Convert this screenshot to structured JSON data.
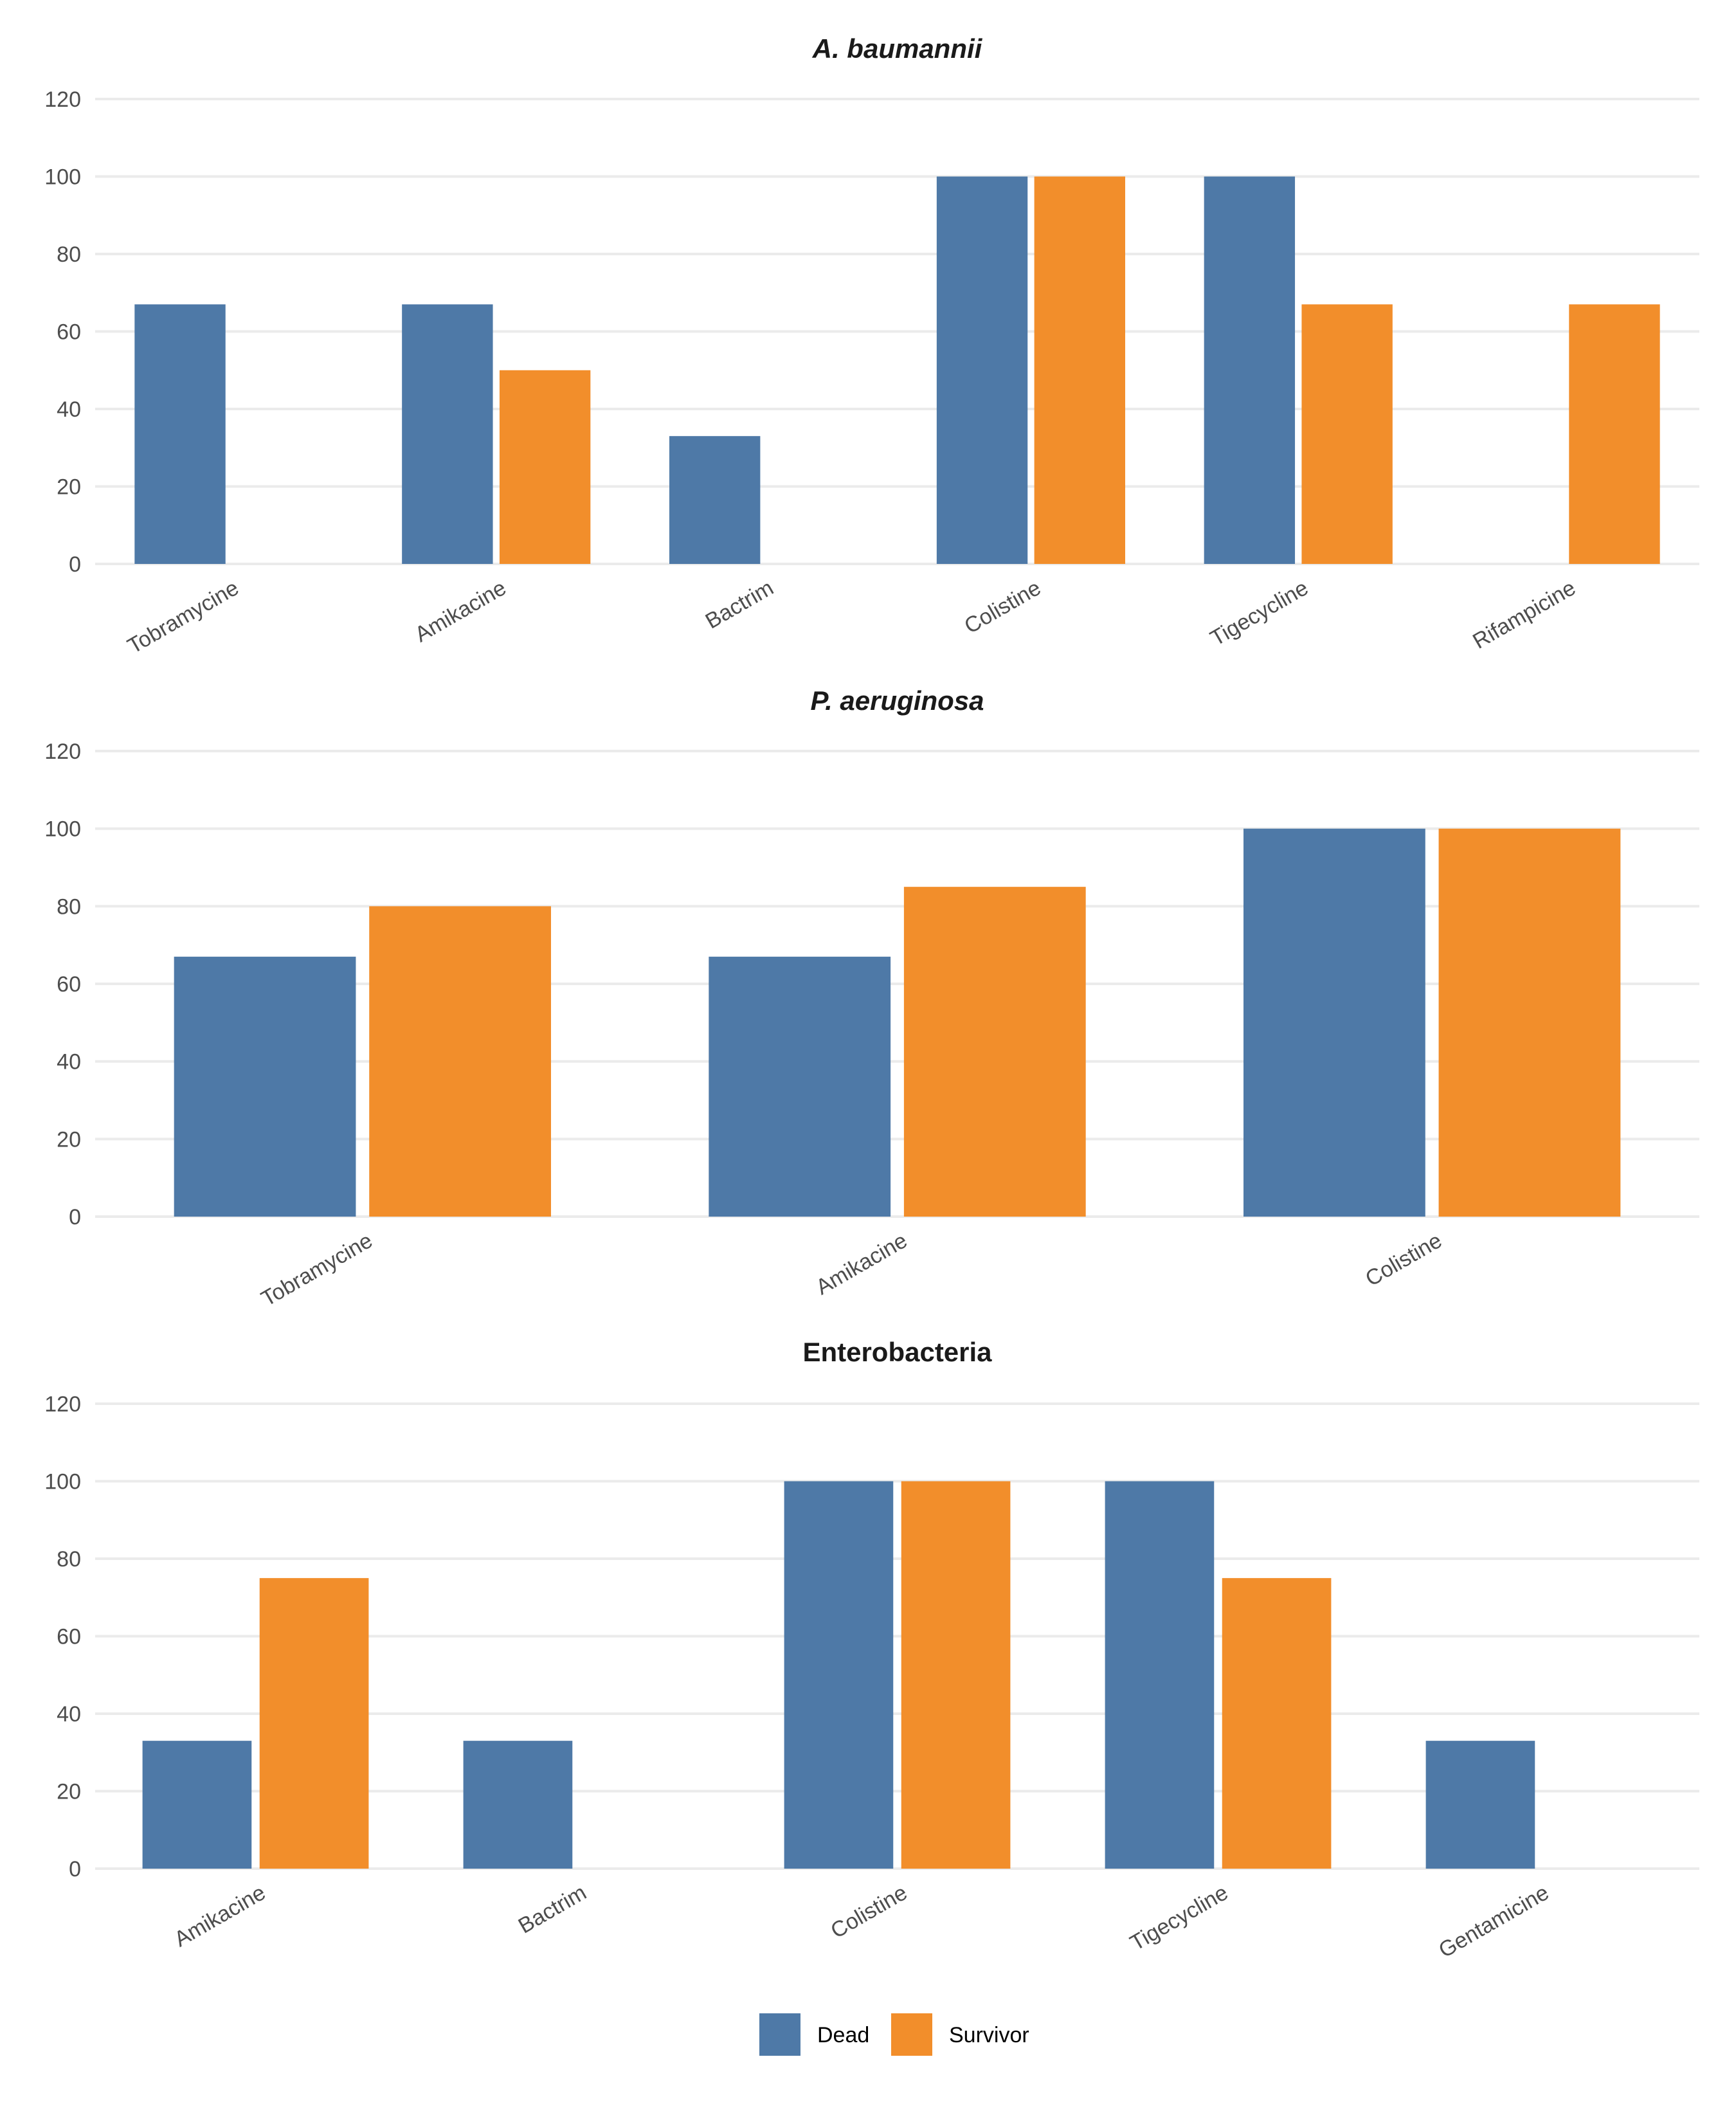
{
  "chart_data": [
    {
      "type": "bar",
      "title": "A. baumannii",
      "title_italic": true,
      "categories": [
        "Tobramycine",
        "Amikacine",
        "Bactrim",
        "Colistine",
        "Tigecycline",
        "Rifampicine"
      ],
      "series": [
        {
          "name": "Dead",
          "values": [
            67,
            67,
            33,
            100,
            100,
            0
          ]
        },
        {
          "name": "Survivor",
          "values": [
            0,
            50,
            0,
            100,
            67,
            67
          ]
        }
      ],
      "yticks": [
        0,
        20,
        40,
        60,
        80,
        100,
        120
      ],
      "ylim": [
        0,
        120
      ],
      "grid": true
    },
    {
      "type": "bar",
      "title": "P. aeruginosa",
      "title_italic": true,
      "categories": [
        "Tobramycine",
        "Amikacine",
        "Colistine"
      ],
      "series": [
        {
          "name": "Dead",
          "values": [
            67,
            67,
            100
          ]
        },
        {
          "name": "Survivor",
          "values": [
            80,
            85,
            100
          ]
        }
      ],
      "yticks": [
        0,
        20,
        40,
        60,
        80,
        100,
        120
      ],
      "ylim": [
        0,
        120
      ],
      "grid": true
    },
    {
      "type": "bar",
      "title": "Enterobacteria",
      "title_italic": false,
      "categories": [
        "Amikacine",
        "Bactrim",
        "Colistine",
        "Tigecycline",
        "Gentamicine"
      ],
      "series": [
        {
          "name": "Dead",
          "values": [
            33,
            33,
            100,
            100,
            33
          ]
        },
        {
          "name": "Survivor",
          "values": [
            75,
            0,
            100,
            75,
            0
          ]
        }
      ],
      "yticks": [
        0,
        20,
        40,
        60,
        80,
        100,
        120
      ],
      "ylim": [
        0,
        120
      ],
      "grid": true
    }
  ],
  "legend": {
    "placement": "bottom",
    "items": [
      {
        "label": "Dead",
        "color": "#4e79a7"
      },
      {
        "label": "Survivor",
        "color": "#f28e2b"
      }
    ]
  },
  "colors": {
    "Dead": "#4e79a7",
    "Survivor": "#f28e2b"
  }
}
